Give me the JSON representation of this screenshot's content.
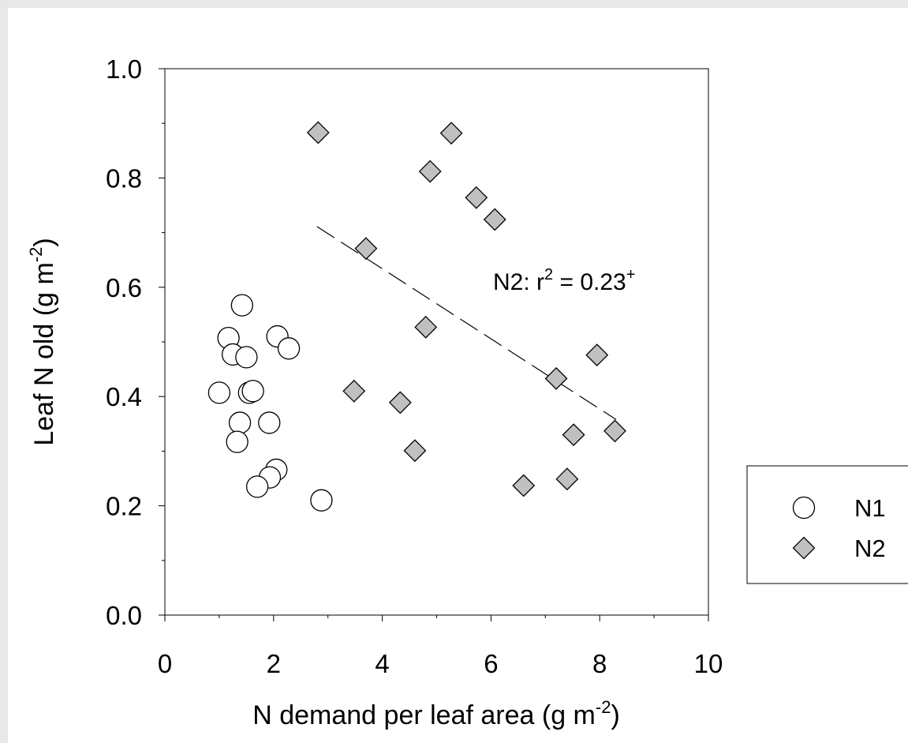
{
  "chart_data": {
    "type": "scatter",
    "xlabel": {
      "main": "N demand per leaf area (g m",
      "sup": "-2",
      "close": ")"
    },
    "ylabel": {
      "main": "Leaf N old (g m",
      "sup": "-2",
      "close": ")"
    },
    "xlim": [
      0,
      10
    ],
    "ylim": [
      0,
      1.0
    ],
    "xticks": [
      "0",
      "2",
      "4",
      "6",
      "8",
      "10"
    ],
    "yticks": [
      "0.0",
      "0.2",
      "0.4",
      "0.6",
      "0.8",
      "1.0"
    ],
    "grid": false,
    "legend_placement": "right, outside plot",
    "series": [
      {
        "name": "N1",
        "marker": "circle",
        "fill": "#ffffff",
        "stroke": "#000000",
        "points": [
          [
            1.42,
            0.567
          ],
          [
            1.17,
            0.507
          ],
          [
            1.25,
            0.477
          ],
          [
            1.5,
            0.472
          ],
          [
            2.07,
            0.51
          ],
          [
            2.28,
            0.488
          ],
          [
            1.0,
            0.407
          ],
          [
            1.55,
            0.407
          ],
          [
            1.62,
            0.41
          ],
          [
            1.38,
            0.352
          ],
          [
            1.92,
            0.352
          ],
          [
            1.33,
            0.317
          ],
          [
            2.05,
            0.266
          ],
          [
            1.93,
            0.252
          ],
          [
            1.7,
            0.235
          ],
          [
            2.88,
            0.21
          ]
        ]
      },
      {
        "name": "N2",
        "marker": "diamond",
        "fill": "#c0c0c0",
        "stroke": "#000000",
        "points": [
          [
            2.82,
            0.883
          ],
          [
            5.27,
            0.882
          ],
          [
            4.88,
            0.812
          ],
          [
            5.73,
            0.764
          ],
          [
            6.07,
            0.724
          ],
          [
            3.7,
            0.671
          ],
          [
            4.8,
            0.527
          ],
          [
            7.95,
            0.476
          ],
          [
            7.2,
            0.433
          ],
          [
            3.48,
            0.41
          ],
          [
            4.33,
            0.389
          ],
          [
            8.28,
            0.337
          ],
          [
            7.52,
            0.33
          ],
          [
            4.6,
            0.301
          ],
          [
            6.6,
            0.237
          ],
          [
            7.4,
            0.249
          ]
        ]
      }
    ],
    "trendline": {
      "series": "N2",
      "style": "dashed",
      "x": [
        2.8,
        8.3
      ],
      "y": [
        0.711,
        0.358
      ]
    },
    "annotation": {
      "prefix": "N2: r",
      "sup": "2",
      "middle": " = 0.23",
      "sup2": "+"
    }
  }
}
